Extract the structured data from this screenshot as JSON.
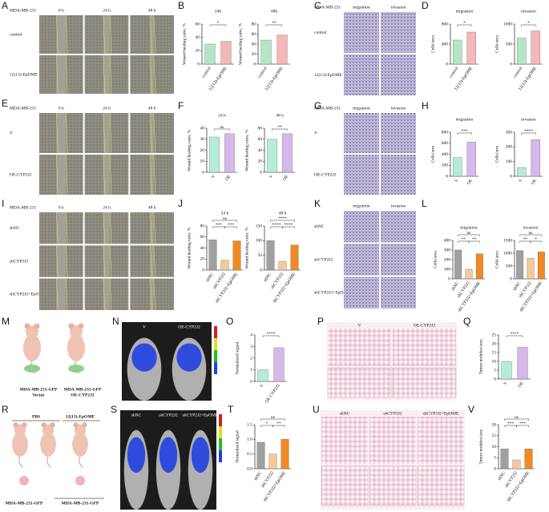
{
  "panels": [
    {
      "letter": "A",
      "header": "MDA-MB-231",
      "columns": [
        "0 h",
        "24 h",
        "48 h"
      ],
      "rows": [
        "control",
        "12(13)-EpOME"
      ]
    },
    {
      "letter": "B",
      "charts": [
        {
          "title": "24h",
          "ylabel": "Wound healing ratio, %",
          "categories": [
            "control",
            "12(13)-EpOME"
          ],
          "values": [
            30,
            34
          ],
          "colors": [
            "#b5e6c4",
            "#f4b8b8"
          ],
          "ylim": [
            0,
            60
          ],
          "yticks": [
            0,
            20,
            40,
            60
          ],
          "significance": [
            "*"
          ]
        },
        {
          "title": "48h",
          "ylabel": "Wound healing ratio, %",
          "categories": [
            "control",
            "12(13)-EpOME"
          ],
          "values": [
            48,
            58
          ],
          "colors": [
            "#b5e6c4",
            "#f4b8b8"
          ],
          "ylim": [
            0,
            80
          ],
          "yticks": [
            0,
            20,
            40,
            60,
            80
          ],
          "significance": [
            "**"
          ]
        }
      ]
    },
    {
      "letter": "C",
      "header": "MDA-MB-231",
      "columns": [
        "migration",
        "invasion"
      ],
      "rows": [
        "control",
        "12(13)-EpOME"
      ]
    },
    {
      "letter": "D",
      "charts": [
        {
          "title": "migration",
          "ylabel": "Cells/area",
          "categories": [
            "control",
            "12(13)-EpOME"
          ],
          "values": [
            480,
            640
          ],
          "colors": [
            "#b5e6c4",
            "#f4b8b8"
          ],
          "ylim": [
            0,
            800
          ],
          "yticks": [
            0,
            400,
            800
          ],
          "significance": [
            "*"
          ]
        },
        {
          "title": "invasion",
          "ylabel": "Cells/area",
          "categories": [
            "control",
            "12(13)-EpOME"
          ],
          "values": [
            650,
            830
          ],
          "colors": [
            "#b5e6c4",
            "#f4b8b8"
          ],
          "ylim": [
            0,
            1000
          ],
          "yticks": [
            0,
            500,
            1000
          ],
          "significance": [
            "*"
          ]
        }
      ]
    },
    {
      "letter": "E",
      "header": "MDA-MB-231",
      "columns": [
        "0 h",
        "24 h",
        "48 h"
      ],
      "rows": [
        "V",
        "OE-CYP2J2"
      ]
    },
    {
      "letter": "F",
      "charts": [
        {
          "title": "24 h",
          "ylabel": "Wound healing ratio, %",
          "categories": [
            "V",
            "OE"
          ],
          "values": [
            32,
            35
          ],
          "colors": [
            "#b5ecd8",
            "#d6b8ea"
          ],
          "ylim": [
            0,
            40
          ],
          "yticks": [
            0,
            10,
            20,
            30,
            40
          ],
          "significance": [
            "ns"
          ]
        },
        {
          "title": "48 h",
          "ylabel": "Wound healing ratio, %",
          "categories": [
            "V",
            "OE"
          ],
          "values": [
            60,
            70
          ],
          "colors": [
            "#b5ecd8",
            "#d6b8ea"
          ],
          "ylim": [
            0,
            80
          ],
          "yticks": [
            0,
            20,
            40,
            60,
            80
          ],
          "significance": [
            "**"
          ]
        }
      ]
    },
    {
      "letter": "G",
      "header": "MDA-MB-231",
      "columns": [
        "migration",
        "invasion"
      ],
      "rows": [
        "V",
        "OE-CYP2J2"
      ]
    },
    {
      "letter": "H",
      "charts": [
        {
          "title": "migration",
          "ylabel": "Cells/area",
          "categories": [
            "V",
            "OE"
          ],
          "values": [
            340,
            620
          ],
          "colors": [
            "#b5ecd8",
            "#d6b8ea"
          ],
          "ylim": [
            0,
            800
          ],
          "yticks": [
            0,
            200,
            400,
            600,
            800
          ],
          "significance": [
            "***"
          ]
        },
        {
          "title": "invasion",
          "ylabel": "Cells/area",
          "categories": [
            "V",
            "OE"
          ],
          "values": [
            60,
            250
          ],
          "colors": [
            "#b5ecd8",
            "#d6b8ea"
          ],
          "ylim": [
            0,
            300
          ],
          "yticks": [
            0,
            100,
            200,
            300
          ],
          "significance": [
            "****"
          ]
        }
      ]
    },
    {
      "letter": "I",
      "header": "MDA-MB-231",
      "columns": [
        "0 h",
        "24 h",
        "48 h"
      ],
      "rows": [
        "shNC",
        "shCYP2J2",
        "shCYP2J2+EpOME"
      ]
    },
    {
      "letter": "J",
      "charts": [
        {
          "title": "24 h",
          "ylabel": "Wound healing ratio, %",
          "categories": [
            "shNC",
            "shCYP2J2",
            "shCYP2J2+EpOME"
          ],
          "values": [
            55,
            18,
            53
          ],
          "colors": [
            "#a0a0a0",
            "#f5c89a",
            "#f08a24"
          ],
          "ylim": [
            0,
            80
          ],
          "yticks": [
            0,
            20,
            40,
            60,
            80
          ],
          "significance": [
            "ns",
            "***",
            "***"
          ]
        },
        {
          "title": "48 h",
          "ylabel": "Wound healing ratio, %",
          "categories": [
            "shNC",
            "shCYP2J2",
            "shCYP2J2+EpOME"
          ],
          "values": [
            100,
            30,
            85
          ],
          "colors": [
            "#a0a0a0",
            "#f5c89a",
            "#f08a24"
          ],
          "ylim": [
            0,
            150
          ],
          "yticks": [
            0,
            50,
            100,
            150
          ],
          "significance": [
            "****",
            "****",
            "****"
          ]
        }
      ]
    },
    {
      "letter": "K",
      "columns": [
        "migration",
        "invasion"
      ],
      "rows": [
        "shNC",
        "shCYP2J2",
        "shCYP2J2+EpOME"
      ]
    },
    {
      "letter": "L",
      "charts": [
        {
          "title": "migration",
          "ylabel": "Cells/area",
          "categories": [
            "shNC",
            "shCYP2J2",
            "shCYP2J2+EpOME"
          ],
          "values": [
            300,
            100,
            260
          ],
          "colors": [
            "#a0a0a0",
            "#f5c89a",
            "#f08a24"
          ],
          "ylim": [
            0,
            400
          ],
          "yticks": [
            0,
            100,
            200,
            300,
            400
          ],
          "significance": [
            "ns",
            "**",
            "**"
          ]
        },
        {
          "title": "invasion",
          "ylabel": "Cells/area",
          "categories": [
            "shNC",
            "shCYP2J2",
            "shCYP2J2+EpOME"
          ],
          "values": [
            1100,
            800,
            1050
          ],
          "colors": [
            "#a0a0a0",
            "#f5c89a",
            "#f08a24"
          ],
          "ylim": [
            0,
            1500
          ],
          "yticks": [
            0,
            500,
            1000,
            1500
          ],
          "significance": [
            "ns",
            "**",
            "*"
          ]
        }
      ]
    },
    {
      "letter": "M",
      "mice": [
        [
          "MDA-MB-231-GFP",
          "Vector"
        ],
        [
          "MDA-MB-231-GFP",
          "OE-CYP2J2"
        ]
      ]
    },
    {
      "letter": "N",
      "columns": [
        "V",
        "OE-CYP2J2"
      ]
    },
    {
      "letter": "O",
      "charts": [
        {
          "ylabel": "Normalized signal",
          "categories": [
            "V",
            "OE-CYP2J2"
          ],
          "values": [
            1.0,
            2.9
          ],
          "colors": [
            "#b5ecd8",
            "#d6b8ea"
          ],
          "ylim": [
            0,
            4
          ],
          "yticks": [
            0,
            1,
            2,
            3,
            4
          ],
          "significance": [
            "****"
          ]
        }
      ]
    },
    {
      "letter": "P",
      "columns": [
        "V",
        "OE-CYP2J2"
      ]
    },
    {
      "letter": "Q",
      "charts": [
        {
          "ylabel": "Tumor nodules/area",
          "categories": [
            "V",
            "OE"
          ],
          "values": [
            10,
            18
          ],
          "colors": [
            "#b5ecd8",
            "#d6b8ea"
          ],
          "ylim": [
            0,
            25
          ],
          "yticks": [
            0,
            5,
            10,
            15,
            20,
            25
          ],
          "significance": [
            "****"
          ]
        }
      ]
    },
    {
      "letter": "R",
      "groups": [
        "PBS",
        "12(13)-EpOME"
      ],
      "cells": [
        "MDA-MB-231-GFP",
        "MDA-MB-231-GFP"
      ]
    },
    {
      "letter": "S",
      "columns": [
        "shNC",
        "shCYP2J2",
        "shCYP2J2+EpOME"
      ]
    },
    {
      "letter": "T",
      "charts": [
        {
          "ylabel": "Normalized signal",
          "categories": [
            "shNC",
            "shCYP2J2",
            "shCYP2J2+EpOME"
          ],
          "values": [
            0.9,
            0.5,
            1.0
          ],
          "colors": [
            "#a0a0a0",
            "#f5c89a",
            "#f08a24"
          ],
          "ylim": [
            0,
            1.5
          ],
          "yticks": [
            {
              "value": 0,
              "label": "0.0"
            },
            0.5,
            {
              "value": 1,
              "label": "1.0"
            },
            1.5
          ],
          "significance": [
            "ns",
            "*",
            "**"
          ]
        }
      ]
    },
    {
      "letter": "U",
      "columns": [
        "shNC",
        "shCYP2J2",
        "shCYP2J2+EpOME"
      ]
    },
    {
      "letter": "V",
      "charts": [
        {
          "ylabel": "Tumor nodules/area",
          "categories": [
            "shNC",
            "shCYP2J2",
            "shCYP2J2+EpOME"
          ],
          "values": [
            9,
            4,
            9
          ],
          "colors": [
            "#a0a0a0",
            "#f5c89a",
            "#f08a24"
          ],
          "ylim": [
            0,
            20
          ],
          "yticks": [
            0,
            5,
            10,
            15,
            20
          ],
          "significance": [
            "ns",
            "***",
            "***"
          ]
        }
      ]
    }
  ]
}
